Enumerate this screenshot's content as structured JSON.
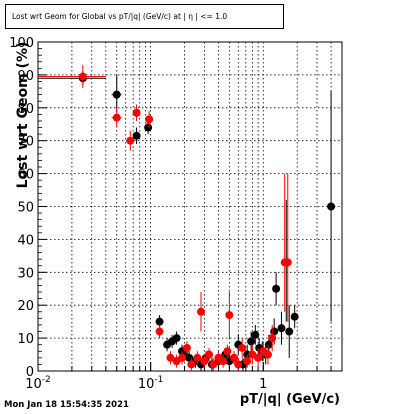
{
  "chart_data": {
    "type": "scatter",
    "title": "Lost wrt Geom for Global vs pT/|q| (GeV/c) at | η | <= 1.0",
    "xlabel": "pT/|q| (GeV/c)",
    "ylabel": "Lost wrt Geom (%)",
    "x_scale": "log",
    "xlim": [
      0.01,
      5.0
    ],
    "ylim": [
      0,
      100
    ],
    "grid": true,
    "x_ticks": [
      0.01,
      0.1,
      1
    ],
    "x_tick_labels": [
      "10^-2",
      "10^-1",
      "1"
    ],
    "y_ticks": [
      0,
      10,
      20,
      30,
      40,
      50,
      60,
      70,
      80,
      90,
      100
    ],
    "y_tick_labels": [
      "0",
      "10",
      "20",
      "30",
      "40",
      "50",
      "60",
      "70",
      "80",
      "90",
      "100"
    ],
    "series": [
      {
        "color": "#000000",
        "points": [
          {
            "x": 0.025,
            "y": 89,
            "xerr": [
              0.01,
              0.04
            ],
            "yerr": [
              87,
              91
            ]
          },
          {
            "x": 0.05,
            "y": 84,
            "xerr": [
              0.045,
              0.055
            ],
            "yerr": [
              79,
              90
            ]
          },
          {
            "x": 0.075,
            "y": 71.5,
            "xerr": [
              0.07,
              0.08
            ],
            "yerr": [
              69,
              74
            ]
          },
          {
            "x": 0.095,
            "y": 74,
            "xerr": [
              0.09,
              0.1
            ],
            "yerr": [
              72,
              76
            ]
          },
          {
            "x": 0.12,
            "y": 15,
            "xerr": [
              0.115,
              0.125
            ],
            "yerr": [
              13,
              17
            ]
          },
          {
            "x": 0.14,
            "y": 8,
            "yerr": [
              6,
              10
            ]
          },
          {
            "x": 0.155,
            "y": 9,
            "yerr": [
              7,
              11
            ]
          },
          {
            "x": 0.17,
            "y": 10,
            "yerr": [
              8,
              12
            ]
          },
          {
            "x": 0.19,
            "y": 6,
            "yerr": [
              4,
              8
            ]
          },
          {
            "x": 0.2,
            "y": 5,
            "yerr": [
              3,
              7
            ]
          },
          {
            "x": 0.22,
            "y": 4,
            "yerr": [
              2,
              6
            ]
          },
          {
            "x": 0.25,
            "y": 3,
            "yerr": [
              1,
              5
            ]
          },
          {
            "x": 0.28,
            "y": 2,
            "yerr": [
              0,
              4
            ]
          },
          {
            "x": 0.31,
            "y": 4,
            "yerr": [
              2,
              6
            ]
          },
          {
            "x": 0.35,
            "y": 2,
            "yerr": [
              0,
              4
            ]
          },
          {
            "x": 0.4,
            "y": 3,
            "yerr": [
              1,
              5
            ]
          },
          {
            "x": 0.46,
            "y": 5,
            "yerr": [
              3,
              7
            ]
          },
          {
            "x": 0.5,
            "y": 3,
            "yerr": [
              1,
              5
            ]
          },
          {
            "x": 0.55,
            "y": 4,
            "yerr": [
              2,
              6
            ]
          },
          {
            "x": 0.6,
            "y": 8,
            "yerr": [
              5,
              11
            ]
          },
          {
            "x": 0.66,
            "y": 2,
            "yerr": [
              0,
              4
            ]
          },
          {
            "x": 0.72,
            "y": 5,
            "yerr": [
              2,
              8
            ]
          },
          {
            "x": 0.78,
            "y": 9,
            "yerr": [
              6,
              12
            ]
          },
          {
            "x": 0.85,
            "y": 11,
            "yerr": [
              8,
              14
            ]
          },
          {
            "x": 0.92,
            "y": 7,
            "yerr": [
              4,
              10
            ]
          },
          {
            "x": 0.98,
            "y": 6,
            "yerr": [
              3,
              9
            ]
          },
          {
            "x": 1.05,
            "y": 5,
            "yerr": [
              2,
              8
            ]
          },
          {
            "x": 1.12,
            "y": 8,
            "yerr": [
              5,
              11
            ]
          },
          {
            "x": 1.25,
            "y": 12,
            "yerr": [
              8,
              16
            ]
          },
          {
            "x": 1.3,
            "y": 25,
            "yerr": [
              20,
              30
            ]
          },
          {
            "x": 1.45,
            "y": 13,
            "yerr": [
              8,
              18
            ]
          },
          {
            "x": 1.6,
            "y": 33,
            "yerr": [
              15,
              52
            ]
          },
          {
            "x": 1.7,
            "y": 12,
            "yerr": [
              4,
              20
            ]
          },
          {
            "x": 1.9,
            "y": 16.5,
            "yerr": [
              13,
              20
            ]
          },
          {
            "x": 4.0,
            "y": 50,
            "yerr": [
              15,
              85
            ]
          }
        ]
      },
      {
        "color": "#ff0000",
        "points": [
          {
            "x": 0.025,
            "y": 89.5,
            "xerr": [
              0.01,
              0.04
            ],
            "yerr": [
              86,
              93
            ]
          },
          {
            "x": 0.05,
            "y": 77,
            "xerr": [
              0.045,
              0.055
            ],
            "yerr": [
              74,
              80
            ]
          },
          {
            "x": 0.066,
            "y": 70,
            "xerr": [
              0.062,
              0.07
            ],
            "yerr": [
              67,
              73
            ]
          },
          {
            "x": 0.075,
            "y": 78.5,
            "xerr": [
              0.07,
              0.08
            ],
            "yerr": [
              76,
              81
            ]
          },
          {
            "x": 0.097,
            "y": 76.5,
            "xerr": [
              0.09,
              0.105
            ],
            "yerr": [
              74,
              79
            ]
          },
          {
            "x": 0.12,
            "y": 12,
            "xerr": [
              0.115,
              0.125
            ],
            "yerr": [
              10,
              14
            ]
          },
          {
            "x": 0.15,
            "y": 4,
            "yerr": [
              2,
              6
            ]
          },
          {
            "x": 0.17,
            "y": 3,
            "yerr": [
              1,
              5
            ]
          },
          {
            "x": 0.19,
            "y": 4,
            "yerr": [
              2,
              6
            ]
          },
          {
            "x": 0.21,
            "y": 7,
            "yerr": [
              5,
              9
            ]
          },
          {
            "x": 0.23,
            "y": 2,
            "yerr": [
              0,
              4
            ]
          },
          {
            "x": 0.26,
            "y": 4,
            "yerr": [
              2,
              6
            ]
          },
          {
            "x": 0.28,
            "y": 18,
            "yerr": [
              12,
              24
            ]
          },
          {
            "x": 0.3,
            "y": 3,
            "yerr": [
              1,
              5
            ]
          },
          {
            "x": 0.33,
            "y": 5,
            "yerr": [
              3,
              7
            ]
          },
          {
            "x": 0.36,
            "y": 2,
            "yerr": [
              0,
              4
            ]
          },
          {
            "x": 0.4,
            "y": 4,
            "yerr": [
              2,
              6
            ]
          },
          {
            "x": 0.44,
            "y": 3,
            "yerr": [
              1,
              5
            ]
          },
          {
            "x": 0.48,
            "y": 6,
            "yerr": [
              4,
              8
            ]
          },
          {
            "x": 0.5,
            "y": 17,
            "yerr": [
              10,
              24
            ]
          },
          {
            "x": 0.55,
            "y": 4,
            "yerr": [
              2,
              6
            ]
          },
          {
            "x": 0.6,
            "y": 2,
            "yerr": [
              0,
              4
            ]
          },
          {
            "x": 0.65,
            "y": 7,
            "yerr": [
              4,
              10
            ]
          },
          {
            "x": 0.72,
            "y": 3,
            "yerr": [
              1,
              5
            ]
          },
          {
            "x": 0.8,
            "y": 5,
            "yerr": [
              2,
              8
            ]
          },
          {
            "x": 0.9,
            "y": 4,
            "yerr": [
              1,
              7
            ]
          },
          {
            "x": 1.0,
            "y": 6,
            "yerr": [
              3,
              9
            ]
          },
          {
            "x": 1.1,
            "y": 5,
            "yerr": [
              2,
              8
            ]
          },
          {
            "x": 1.2,
            "y": 10,
            "yerr": [
              6,
              14
            ]
          },
          {
            "x": 1.55,
            "y": 33,
            "yerr": [
              18,
              60
            ]
          },
          {
            "x": 1.65,
            "y": 33,
            "yerr": [
              15,
              60
            ]
          }
        ]
      }
    ]
  },
  "datestamp": "Mon Jan 18 15:54:35 2021"
}
